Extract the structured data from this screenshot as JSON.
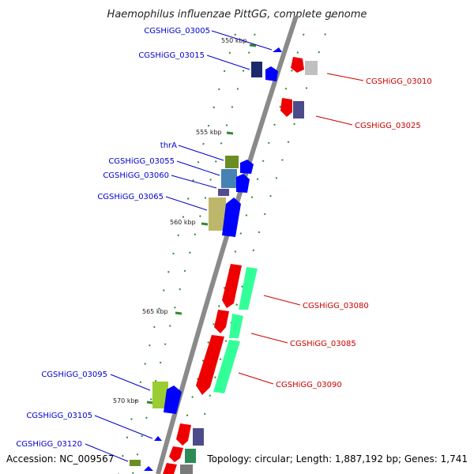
{
  "title": "Haemophilus influenzae PittGG, complete genome",
  "footer": {
    "accession": "Accession: NC_009567",
    "summary": "Topology: circular; Length: 1,887,192 bp; Genes: 1,741"
  },
  "colors": {
    "forward_label": "#0000cc",
    "reverse_label": "#cc0000",
    "backbone": "#8a8a8a",
    "tick": "#2e8b2e"
  },
  "ticks": [
    "550 kbp",
    "555 kbp",
    "560 kbp",
    "565 kbp",
    "570 kbp"
  ],
  "forward_labels": [
    "CGSHiGG_03005",
    "CGSHiGG_03015",
    "thrA",
    "CGSHiGG_03055",
    "CGSHiGG_03060",
    "CGSHiGG_03065",
    "CGSHiGG_03095",
    "CGSHiGG_03105",
    "CGSHiGG_03120"
  ],
  "reverse_labels": [
    "CGSHiGG_03010",
    "CGSHiGG_03025",
    "CGSHiGG_03080",
    "CGSHiGG_03085",
    "CGSHiGG_03090"
  ]
}
